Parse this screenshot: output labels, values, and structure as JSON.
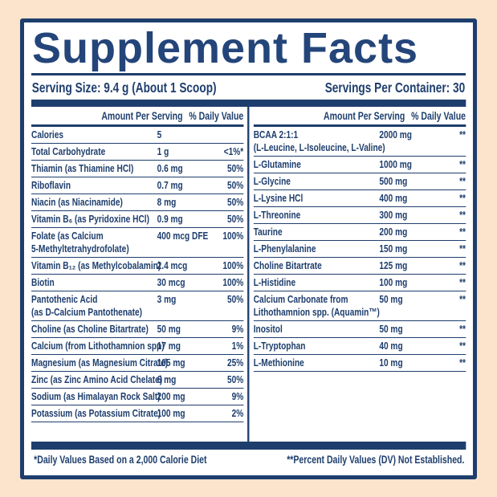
{
  "colors": {
    "navy": "#1e3e6d",
    "title_navy": "#24457a",
    "background_peach": "#fbe3cc",
    "panel_white": "#ffffff"
  },
  "title": "Supplement Facts",
  "serving": {
    "size": "Serving Size: 9.4 g (About 1 Scoop)",
    "per_container": "Servings Per Container: 30"
  },
  "column_header": {
    "amount": "Amount Per Serving",
    "daily_value": "% Daily Value"
  },
  "left_rows": [
    {
      "name_lines": [
        "Calories"
      ],
      "amount": "5",
      "dv": ""
    },
    {
      "name_lines": [
        "Total Carbohydrate"
      ],
      "amount": "1 g",
      "dv": "<1%*"
    },
    {
      "name_lines": [
        "Thiamin (as Thiamine HCl)"
      ],
      "amount": "0.6 mg",
      "dv": "50%"
    },
    {
      "name_lines": [
        "Riboflavin"
      ],
      "amount": "0.7 mg",
      "dv": "50%"
    },
    {
      "name_lines": [
        "Niacin (as Niacinamide)"
      ],
      "amount": "8 mg",
      "dv": "50%"
    },
    {
      "name_lines": [
        "Vitamin B₆ (as Pyridoxine HCl)"
      ],
      "amount": "0.9 mg",
      "dv": "50%"
    },
    {
      "name_lines": [
        "Folate (as Calcium",
        "5-Methyltetrahydrofolate)"
      ],
      "amount": "400 mcg DFE",
      "dv": "100%"
    },
    {
      "name_lines": [
        "Vitamin B₁₂ (as Methylcobalamin)"
      ],
      "amount": "2.4 mcg",
      "dv": "100%"
    },
    {
      "name_lines": [
        "Biotin"
      ],
      "amount": "30 mcg",
      "dv": "100%"
    },
    {
      "name_lines": [
        "Pantothenic Acid",
        "(as D-Calcium Pantothenate)"
      ],
      "amount": "3 mg",
      "dv": "50%"
    },
    {
      "name_lines": [
        "Choline (as Choline Bitartrate)"
      ],
      "amount": "50 mg",
      "dv": "9%"
    },
    {
      "name_lines": [
        "Calcium (from Lithothamnion spp)"
      ],
      "amount": "17 mg",
      "dv": "1%"
    },
    {
      "name_lines": [
        "Magnesium (as Magnesium Citrate)"
      ],
      "amount": "105 mg",
      "dv": "25%"
    },
    {
      "name_lines": [
        "Zinc (as Zinc Amino Acid Chelate)"
      ],
      "amount": "6 mg",
      "dv": "50%"
    },
    {
      "name_lines": [
        "Sodium (as Himalayan Rock Salt)"
      ],
      "amount": "200 mg",
      "dv": "9%"
    },
    {
      "name_lines": [
        "Potassium (as Potassium Citrate)"
      ],
      "amount": "100 mg",
      "dv": "2%"
    }
  ],
  "right_rows": [
    {
      "name_lines": [
        "BCAA 2:1:1",
        "(L-Leucine, L-Isoleucine, L-Valine)"
      ],
      "amount": "2000 mg",
      "dv": "**"
    },
    {
      "name_lines": [
        "L-Glutamine"
      ],
      "amount": "1000 mg",
      "dv": "**"
    },
    {
      "name_lines": [
        "L-Glycine"
      ],
      "amount": "500 mg",
      "dv": "**"
    },
    {
      "name_lines": [
        "L-Lysine HCl"
      ],
      "amount": "400 mg",
      "dv": "**"
    },
    {
      "name_lines": [
        "L-Threonine"
      ],
      "amount": "300 mg",
      "dv": "**"
    },
    {
      "name_lines": [
        "Taurine"
      ],
      "amount": "200 mg",
      "dv": "**"
    },
    {
      "name_lines": [
        "L-Phenylalanine"
      ],
      "amount": "150 mg",
      "dv": "**"
    },
    {
      "name_lines": [
        "Choline Bitartrate"
      ],
      "amount": "125 mg",
      "dv": "**"
    },
    {
      "name_lines": [
        "L-Histidine"
      ],
      "amount": "100 mg",
      "dv": "**"
    },
    {
      "name_lines": [
        "Calcium Carbonate from",
        "Lithothamnion spp. (Aquamin™)"
      ],
      "amount": "50 mg",
      "dv": "**"
    },
    {
      "name_lines": [
        "Inositol"
      ],
      "amount": "50 mg",
      "dv": "**"
    },
    {
      "name_lines": [
        "L-Tryptophan"
      ],
      "amount": "40 mg",
      "dv": "**"
    },
    {
      "name_lines": [
        "L-Methionine"
      ],
      "amount": "10 mg",
      "dv": "**"
    }
  ],
  "footnotes": {
    "daily_value_note": "*Daily Values Based on a 2,000 Calorie Diet",
    "not_established_note": "**Percent Daily Values (DV) Not Established."
  }
}
